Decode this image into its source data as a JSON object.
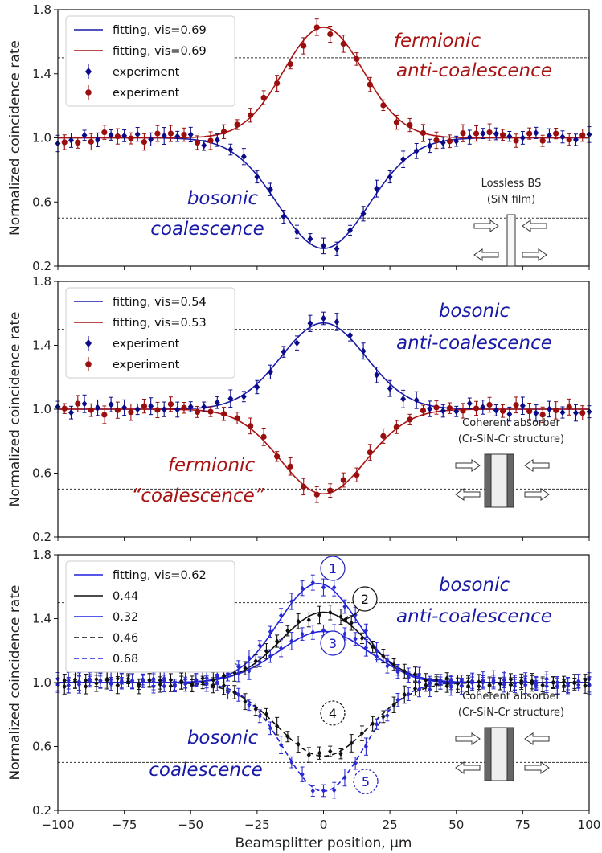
{
  "figure": {
    "xlabel": "Beamsplitter position, μm",
    "x_ticks": [
      "−100",
      "−75",
      "−50",
      "−25",
      "0",
      "25",
      "50",
      "75",
      "100"
    ],
    "ylabel": "Normalized coincidence rate",
    "y_ticks": [
      "0.2",
      "0.6",
      "1.0",
      "1.4",
      "1.8"
    ]
  },
  "chart_data": [
    {
      "type": "line",
      "xlim": [
        -100,
        100
      ],
      "ylim": [
        0.2,
        1.8
      ],
      "ylabel": "Normalized coincidence rate",
      "reference_lines": [
        1.5,
        0.5
      ],
      "legend": [
        {
          "label": "fitting, vis=0.69",
          "color": "#1a1aa8",
          "kind": "line"
        },
        {
          "label": "fitting, vis=0.69",
          "color": "#a81414",
          "kind": "line"
        },
        {
          "label": "experiment",
          "color": "#0a0a8a",
          "kind": "marker"
        },
        {
          "label": "experiment",
          "color": "#9a0e0e",
          "kind": "marker"
        }
      ],
      "series": [
        {
          "color": "#1a1aa8",
          "marker": "diamond",
          "amp": -0.69,
          "sigma": 17,
          "center": 0,
          "y_min": 0.33
        },
        {
          "color": "#a81414",
          "marker": "circle",
          "amp": 0.69,
          "sigma": 15,
          "center": 0,
          "y_max": 1.67
        }
      ],
      "annotations": [
        {
          "text": "fermionic",
          "color": "#a81414"
        },
        {
          "text": "anti-coalescence",
          "color": "#a81414"
        },
        {
          "text": "bosonic",
          "color": "#1a1aa8"
        },
        {
          "text": "coalescence",
          "color": "#1a1aa8"
        }
      ],
      "inset": {
        "line1": "Lossless BS",
        "line2": "(SiN film)",
        "type": "thin"
      }
    },
    {
      "type": "line",
      "xlim": [
        -100,
        100
      ],
      "ylim": [
        0.2,
        1.8
      ],
      "ylabel": "Normalized coincidence rate",
      "reference_lines": [
        1.5,
        0.5
      ],
      "legend": [
        {
          "label": "fitting, vis=0.54",
          "color": "#1a1aa8",
          "kind": "line"
        },
        {
          "label": "fitting, vis=0.53",
          "color": "#a81414",
          "kind": "line"
        },
        {
          "label": "experiment",
          "color": "#0a0a8a",
          "kind": "marker"
        },
        {
          "label": "experiment",
          "color": "#9a0e0e",
          "kind": "marker"
        }
      ],
      "series": [
        {
          "color": "#1a1aa8",
          "marker": "diamond",
          "amp": 0.54,
          "sigma": 16,
          "center": 0,
          "y_max": 1.54
        },
        {
          "color": "#a81414",
          "marker": "circle",
          "amp": -0.53,
          "sigma": 16,
          "center": 0,
          "y_min": 0.48
        }
      ],
      "annotations": [
        {
          "text": "bosonic",
          "color": "#1a1aa8"
        },
        {
          "text": "anti-coalescence",
          "color": "#1a1aa8"
        },
        {
          "text": "fermionic",
          "color": "#a81414"
        },
        {
          "text": "“coalescence”",
          "color": "#a81414"
        }
      ],
      "inset": {
        "line1": "Coherent absorber",
        "line2": "(Cr-SiN-Cr structure)",
        "type": "thick"
      }
    },
    {
      "type": "line",
      "xlim": [
        -100,
        100
      ],
      "ylim": [
        0.2,
        1.8
      ],
      "ylabel": "Normalized coincidence rate",
      "reference_lines": [
        1.5,
        0.5
      ],
      "legend": [
        {
          "label": "fitting, vis=0.62",
          "color": "#2020e0",
          "dash": "none"
        },
        {
          "label": "0.44",
          "color": "#111111",
          "dash": "none"
        },
        {
          "label": "0.32",
          "color": "#2020e0",
          "dash": "none"
        },
        {
          "label": "0.46",
          "color": "#111111",
          "dash": "6,4"
        },
        {
          "label": "0.68",
          "color": "#2020e0",
          "dash": "6,4"
        }
      ],
      "series": [
        {
          "color": "#2020e0",
          "dash": "none",
          "amp": 0.62,
          "sigma": 15,
          "center": -2,
          "y_max": 1.62
        },
        {
          "color": "#111111",
          "dash": "none",
          "amp": 0.44,
          "sigma": 16,
          "center": 0,
          "y_max": 1.44
        },
        {
          "color": "#2020e0",
          "dash": "none",
          "amp": 0.32,
          "sigma": 17,
          "center": 0,
          "y_max": 1.32
        },
        {
          "color": "#111111",
          "dash": "6,4",
          "amp": -0.46,
          "sigma": 17,
          "center": 0,
          "y_min": 0.54
        },
        {
          "color": "#2020e0",
          "dash": "6,4",
          "amp": -0.68,
          "sigma": 15,
          "center": 0,
          "y_min": 0.32
        }
      ],
      "circles": [
        "1",
        "2",
        "3",
        "4",
        "5"
      ],
      "annotations": [
        {
          "text": "bosonic",
          "color": "#1a1aa8"
        },
        {
          "text": "anti-coalescence",
          "color": "#1a1aa8"
        },
        {
          "text": "bosonic",
          "color": "#1a1aa8"
        },
        {
          "text": "coalescence",
          "color": "#1a1aa8"
        }
      ],
      "inset": {
        "line1": "Coherent absorber",
        "line2": "(Cr-SiN-Cr structure)",
        "type": "thick"
      }
    }
  ]
}
